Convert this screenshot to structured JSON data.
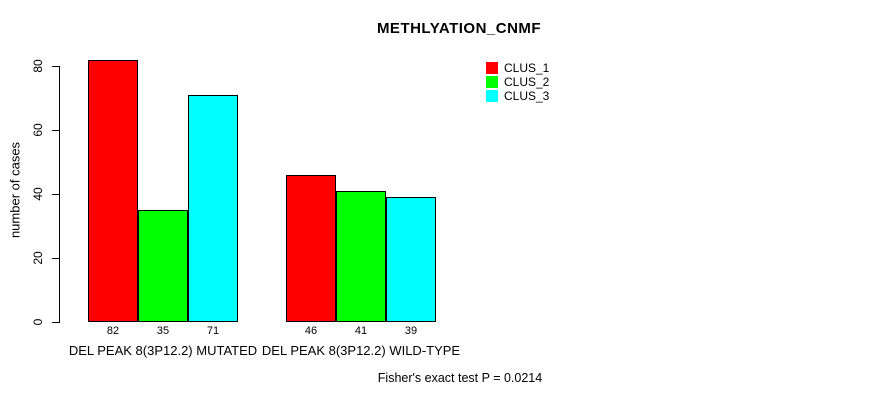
{
  "title": "METHLYATION_CNMF",
  "footer": "Fisher's exact test P = 0.0214",
  "chart_data": {
    "type": "bar",
    "title": "METHLYATION_CNMF",
    "xlabel": "",
    "ylabel": "number of cases",
    "yticks": [
      0,
      20,
      40,
      60,
      80
    ],
    "ylim": [
      0,
      82
    ],
    "grid": false,
    "categories": [
      "DEL PEAK  8(3P12.2) MUTATED",
      "DEL PEAK  8(3P12.2) WILD-TYPE"
    ],
    "series": [
      {
        "name": "CLUS_1",
        "color": "#FF0000",
        "values": [
          82,
          46
        ]
      },
      {
        "name": "CLUS_2",
        "color": "#00FF00",
        "values": [
          35,
          41
        ]
      },
      {
        "name": "CLUS_3",
        "color": "#00FFFF",
        "values": [
          71,
          39
        ]
      }
    ],
    "show_value_labels": true,
    "value_labels": [
      [
        82,
        35,
        71
      ],
      [
        46,
        41,
        39
      ]
    ],
    "legend": {
      "position": "top-right",
      "entries": [
        "CLUS_1",
        "CLUS_2",
        "CLUS_3"
      ]
    },
    "annotation": "Fisher's exact test P = 0.0214"
  }
}
